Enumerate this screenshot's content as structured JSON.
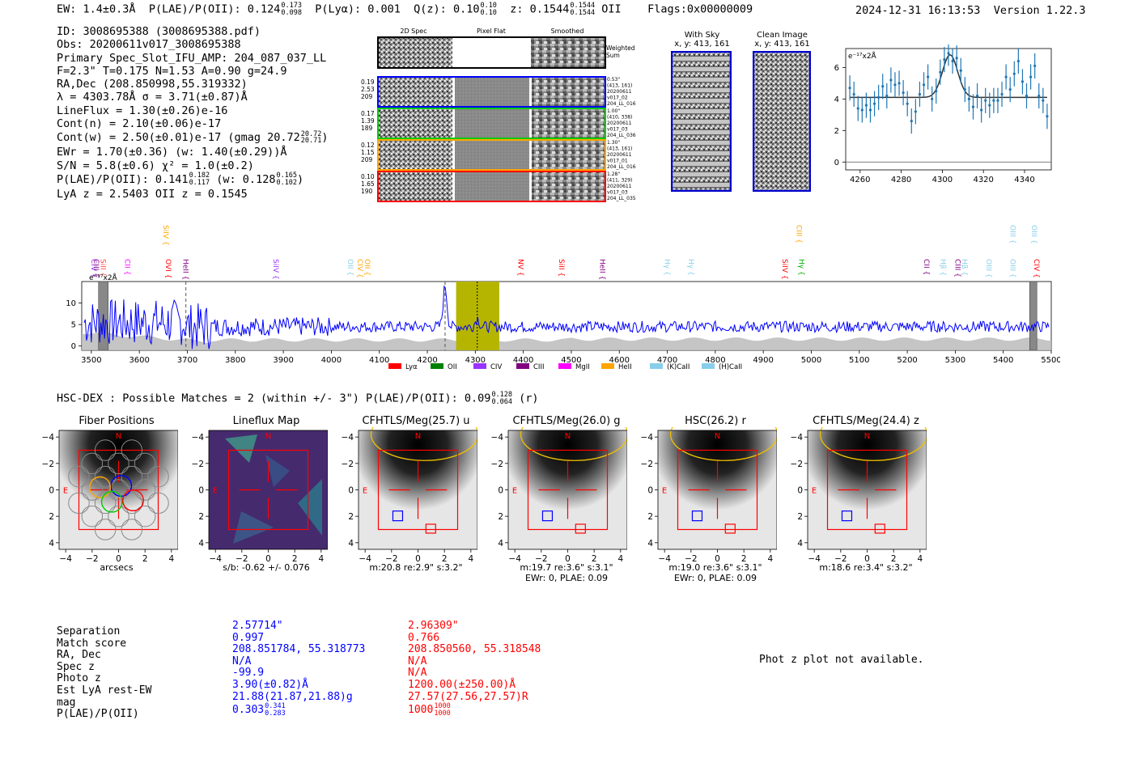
{
  "header": {
    "ew": "EW: 1.4±0.3Å",
    "plae_label": "P(LAE)/P(OII): 0.124",
    "plae_hi": "0.173",
    "plae_lo": "0.098",
    "plya": "P(Lyα): 0.001",
    "qz_label": "Q(z): 0.10",
    "qz_hi": "0.10",
    "qz_lo": "0.10",
    "z_label": "z: 0.1544",
    "z_hi": "0.1544",
    "z_lo": "0.1544",
    "z_line": "OII",
    "flags": "Flags:0x00000009",
    "datetime": "2024-12-31 16:13:53",
    "version": "Version 1.22.3"
  },
  "info": {
    "id": "ID: 3008695388 (3008695388.pdf)",
    "obs": "Obs: 20200611v017_3008695388",
    "slot": "Primary Spec_Slot_IFU_AMP: 204_087_037_LL",
    "fit": "F=2.3\"  T=0.175  N=1.53  A=0.90  g=24.9",
    "radec": "RA,Dec (208.850998,55.319332)",
    "lambda": "λ = 4303.78Å  σ = 3.71(±0.87)Å",
    "lineflux": "LineFlux = 1.30(±0.26)e-16",
    "contn": "Cont(n) = 2.10(±0.06)e-17",
    "contw": "Cont(w) = 2.50(±0.01)e-17 (gmag 20.72",
    "gmag_hi": "20.72",
    "gmag_lo": "20.71",
    "gmag_close": ")",
    "ewr": "EWr = 1.70(±0.36) (w: 1.40(±0.29))Å",
    "sn": "S/N = 5.8(±0.6)  χ² = 1.0(±0.2)",
    "plae": "P(LAE)/P(OII): 0.141",
    "plae_hi": "0.182",
    "plae_lo": "0.117",
    "plae_w": "(w: 0.128",
    "plae_w_hi": "0.165",
    "plae_w_lo": "0.102",
    "plae_close": ")",
    "lyaz": "LyA z = 2.5403   OII z = 0.1545"
  },
  "stamps": {
    "col_2d": "2D Spec",
    "col_flat": "Pixel Flat",
    "col_smooth": "Smoothed",
    "weighted": [
      "Weighted",
      "Sum"
    ],
    "rows": [
      {
        "left": [
          "0.19",
          "2.53",
          "209"
        ],
        "right": [
          "0.53\"",
          "(413, 161)",
          "20200611",
          "v017_02",
          "204_LL_016"
        ],
        "color": "#0000ff"
      },
      {
        "left": [
          "0.17",
          "1.39",
          "189"
        ],
        "right": [
          "1.00\"",
          "(410, 338)",
          "20200611",
          "v017_03",
          "204_LL_036"
        ],
        "color": "#00cc00"
      },
      {
        "left": [
          "0.12",
          "1.15",
          "209"
        ],
        "right": [
          "1.30\"",
          "(413, 161)",
          "20200611",
          "v017_01",
          "204_LL_016"
        ],
        "color": "#ffa500"
      },
      {
        "left": [
          "0.10",
          "1.65",
          "190"
        ],
        "right": [
          "1.28\"",
          "(411, 329)",
          "20200611",
          "v017_03",
          "204_LL_035"
        ],
        "color": "#ff0000"
      }
    ],
    "with_sky_title": "With Sky",
    "with_sky_xy": "x, y: 413, 161",
    "clean_title": "Clean Image",
    "clean_xy": "x, y: 413, 161"
  },
  "colors": {
    "spectrum": "#0000ff",
    "fit": "#333333",
    "points": "#1f77b4",
    "band": "#b5b500",
    "noise": "#bbbbbb"
  },
  "chart_data": [
    {
      "type": "scatter",
      "ylabel_unit": "e⁻¹⁷x2Å",
      "xlim": [
        4253,
        4353
      ],
      "ylim": [
        -0.5,
        7.2
      ],
      "xticks": [
        4260,
        4280,
        4300,
        4320,
        4340
      ],
      "yticks": [
        0,
        2,
        4,
        6
      ],
      "hline": 0,
      "x": [
        4255,
        4257,
        4259,
        4261,
        4263,
        4265,
        4267,
        4269,
        4271,
        4273,
        4275,
        4277,
        4279,
        4281,
        4283,
        4285,
        4287,
        4289,
        4291,
        4293,
        4295,
        4297,
        4299,
        4301,
        4303,
        4305,
        4307,
        4309,
        4311,
        4313,
        4315,
        4317,
        4319,
        4321,
        4323,
        4325,
        4327,
        4329,
        4331,
        4333,
        4335,
        4337,
        4339,
        4341,
        4343,
        4345,
        4347,
        4349,
        4351
      ],
      "y": [
        4.7,
        4.3,
        3.4,
        3.3,
        3.6,
        3.3,
        3.7,
        4.1,
        4.8,
        4.2,
        5.2,
        4.9,
        5.0,
        4.4,
        3.7,
        2.6,
        3.2,
        4.3,
        4.9,
        5.4,
        4.0,
        4.5,
        5.7,
        6.5,
        6.9,
        6.4,
        6.6,
        5.8,
        4.6,
        4.0,
        3.5,
        4.2,
        3.3,
        3.9,
        3.6,
        3.9,
        3.9,
        4.3,
        5.4,
        4.6,
        5.6,
        6.4,
        5.1,
        4.2,
        5.4,
        6.1,
        4.2,
        3.9,
        2.9
      ],
      "err": [
        0.8,
        0.8,
        0.8,
        0.8,
        0.8,
        0.8,
        0.8,
        0.8,
        0.8,
        0.8,
        0.8,
        0.8,
        0.8,
        0.8,
        0.8,
        0.8,
        0.8,
        0.8,
        0.8,
        0.8,
        0.8,
        0.8,
        0.8,
        0.8,
        0.8,
        0.8,
        0.8,
        0.8,
        0.8,
        0.8,
        0.8,
        0.8,
        0.8,
        0.8,
        0.8,
        0.8,
        0.8,
        0.8,
        0.8,
        0.8,
        0.8,
        0.8,
        0.8,
        0.8,
        0.8,
        0.8,
        0.8,
        0.8,
        0.8
      ],
      "fit": {
        "continuum": 4.1,
        "amplitude": 2.7,
        "center": 4303.78,
        "sigma": 3.71
      }
    },
    {
      "type": "line",
      "ylabel_unit": "e⁻¹⁷x2Å",
      "xlim": [
        3480,
        5500
      ],
      "ylim": [
        -1,
        15
      ],
      "xticks": [
        3500,
        3600,
        3700,
        3800,
        3900,
        4000,
        4100,
        4200,
        4300,
        4400,
        4500,
        4600,
        4700,
        4800,
        4900,
        5000,
        5100,
        5200,
        5300,
        5400,
        5500
      ],
      "yticks": [
        0,
        5,
        10
      ],
      "highlight_band": [
        4260,
        4350
      ],
      "marker_line": 4304,
      "dashed_lines": [
        3697,
        4237
      ],
      "hatched_regions": [
        [
          3515,
          3535
        ],
        [
          5455,
          5470
        ]
      ],
      "continuum_level": 4.5,
      "emission_peak": {
        "x": 4237,
        "y": 14
      },
      "line_labels": [
        {
          "x": 3505,
          "label": "CIV",
          "color": "#9933ff",
          "row": 1
        },
        {
          "x": 3510,
          "label": "CIII",
          "color": "#800080",
          "row": 1
        },
        {
          "x": 3525,
          "label": "SiII",
          "color": "#ff4444",
          "row": 1
        },
        {
          "x": 3575,
          "label": "CII",
          "color": "#ff00ff",
          "row": 1
        },
        {
          "x": 3655,
          "label": "SiIV",
          "color": "#ffa500",
          "row": 0
        },
        {
          "x": 3660,
          "label": "OVI",
          "color": "#ff0000",
          "row": 1
        },
        {
          "x": 3697,
          "label": "HeII",
          "color": "#800080",
          "row": 1
        },
        {
          "x": 3885,
          "label": "SiIV",
          "color": "#9933ff",
          "row": 1
        },
        {
          "x": 4040,
          "label": "OII",
          "color": "#87ceeb",
          "row": 1
        },
        {
          "x": 4060,
          "label": "CIV",
          "color": "#ffa500",
          "row": 1
        },
        {
          "x": 4075,
          "label": "OII",
          "color": "#ffa500",
          "row": 1
        },
        {
          "x": 4395,
          "label": "NV",
          "color": "#ff0000",
          "row": 1
        },
        {
          "x": 4480,
          "label": "SiII",
          "color": "#ff0000",
          "row": 1
        },
        {
          "x": 4565,
          "label": "HeII",
          "color": "#800080",
          "row": 1
        },
        {
          "x": 4700,
          "label": "Hγ",
          "color": "#87ceeb",
          "row": 1
        },
        {
          "x": 4750,
          "label": "Hγ",
          "color": "#87ceeb",
          "row": 1
        },
        {
          "x": 4945,
          "label": "SiIV",
          "color": "#ff0000",
          "row": 1
        },
        {
          "x": 4975,
          "label": "CIII",
          "color": "#ffa500",
          "row": 0
        },
        {
          "x": 4980,
          "label": "Hγ",
          "color": "#00aa00",
          "row": 1
        },
        {
          "x": 5240,
          "label": "CII",
          "color": "#800080",
          "row": 1
        },
        {
          "x": 5275,
          "label": "Hβ",
          "color": "#87ceeb",
          "row": 1
        },
        {
          "x": 5305,
          "label": "CIII",
          "color": "#800080",
          "row": 1
        },
        {
          "x": 5320,
          "label": "Hβ",
          "color": "#87ceeb",
          "row": 1
        },
        {
          "x": 5370,
          "label": "OIII",
          "color": "#87ceeb",
          "row": 1
        },
        {
          "x": 5420,
          "label": "OIII",
          "color": "#87ceeb",
          "row": 0
        },
        {
          "x": 5420,
          "label": "OIII",
          "color": "#87ceeb",
          "row": 1
        },
        {
          "x": 5465,
          "label": "OIII",
          "color": "#87ceeb",
          "row": 0
        },
        {
          "x": 5470,
          "label": "CIV",
          "color": "#ff0000",
          "row": 1
        }
      ],
      "legend": [
        {
          "label": "Lyα",
          "color": "#ff0000"
        },
        {
          "label": "OII",
          "color": "#008000"
        },
        {
          "label": "CIV",
          "color": "#9933ff"
        },
        {
          "label": "CIII",
          "color": "#800080"
        },
        {
          "label": "MgII",
          "color": "#ff00ff"
        },
        {
          "label": "HeII",
          "color": "#ffa500"
        },
        {
          "label": "(K)CaII",
          "color": "#87ceeb"
        },
        {
          "label": "(H)CaII",
          "color": "#87ceeb"
        }
      ]
    }
  ],
  "hsc": {
    "title": "HSC-DEX : Possible Matches = 2 (within +/- 3\")  P(LAE)/P(OII): 0.09",
    "plae_hi": "0.128",
    "plae_lo": "0.064",
    "band": "(r)"
  },
  "cutouts": {
    "ticks": [
      "−4",
      "−2",
      "0",
      "2",
      "4"
    ],
    "n_label": "N",
    "e_label": "E",
    "panels": [
      {
        "title": "Fiber Positions",
        "sub1": "arcsecs",
        "sub2": ""
      },
      {
        "title": "Lineflux Map",
        "sub1": "s/b: -0.62 +/- 0.076",
        "sub2": ""
      },
      {
        "title": "CFHTLS/Meg(25.7) u",
        "sub1": "m:20.8  re:2.9\"  s:3.2\"",
        "sub2": ""
      },
      {
        "title": "CFHTLS/Meg(26.0) g",
        "sub1": "m:19.7  re:3.6\"  s:3.1\"",
        "sub2": "EWr: 0, PLAE: 0.09"
      },
      {
        "title": "HSC(26.2) r",
        "sub1": "m:19.0  re:3.6\"  s:3.1\"",
        "sub2": "EWr: 0, PLAE: 0.09"
      },
      {
        "title": "CFHTLS/Meg(24.4) z",
        "sub1": "m:18.6  re:3.4\"  s:3.2\"",
        "sub2": ""
      }
    ]
  },
  "table": {
    "labels": [
      "Separation",
      "Match score",
      "RA, Dec",
      "Spec z",
      "Photo z",
      "Est LyA rest-EW",
      "mag",
      "P(LAE)/P(OII)"
    ],
    "blue": [
      "2.57714\"",
      "0.997",
      "208.851784, 55.318773",
      "N/A",
      "-99.9",
      "3.90(±0.82)Å",
      "21.88(21.87,21.88)g",
      "0.303"
    ],
    "blue_hi": "0.341",
    "blue_lo": "0.283",
    "red": [
      "2.96309\"",
      "0.766",
      "208.850560, 55.318548",
      "N/A",
      "N/A",
      "1200.00(±250.00)Å",
      "27.57(27.56,27.57)R",
      "1000"
    ],
    "red_hi": "1000",
    "red_lo": "1000"
  },
  "photz_note": "Phot z plot not available."
}
